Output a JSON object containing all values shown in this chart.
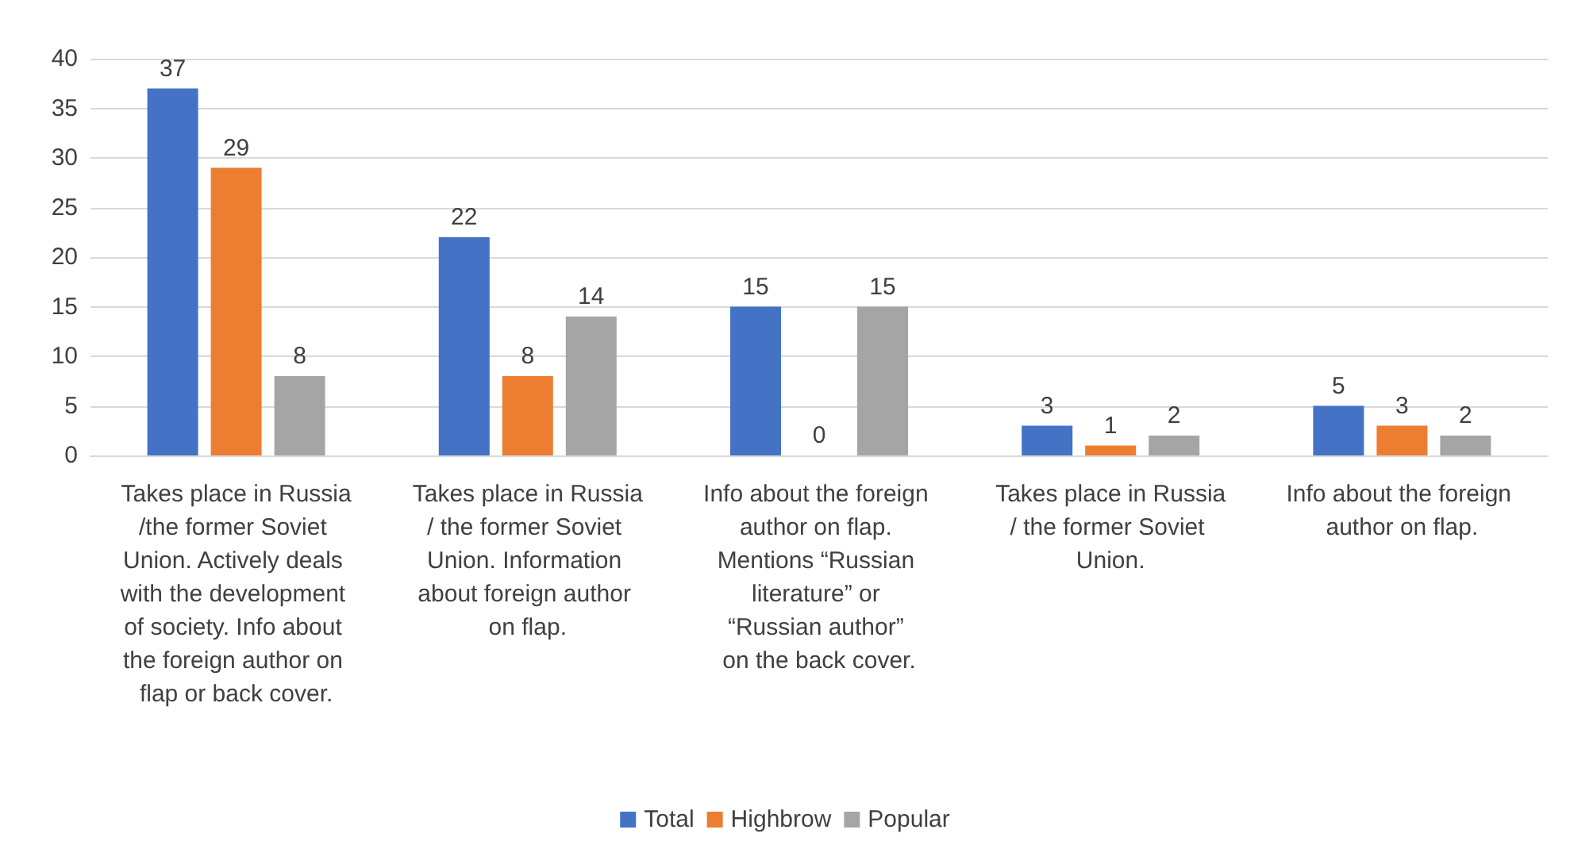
{
  "chart_data": {
    "type": "bar",
    "categories": [
      "Takes place in Russia/the former Soviet Union. Actively deals with the development of society. Info about the foreign author on flap or back cover.",
      "Takes place in Russia/ the former Soviet Union. Information about foreign author on flap.",
      "Info about the foreign author on flap. Mentions “Russian literature” or “Russian author” on the back cover.",
      "Takes place in Russia/ the former Soviet Union.",
      "Info about the foreign author on flap."
    ],
    "series": [
      {
        "name": "Total",
        "color": "#4472c4",
        "values": [
          37,
          22,
          15,
          3,
          5
        ]
      },
      {
        "name": "Highbrow",
        "color": "#ed7d31",
        "values": [
          29,
          8,
          0,
          1,
          3
        ]
      },
      {
        "name": "Popular",
        "color": "#a5a5a5",
        "values": [
          8,
          14,
          15,
          2,
          2
        ]
      }
    ],
    "ylim": [
      0,
      40
    ],
    "yticks": [
      0,
      5,
      10,
      15,
      20,
      25,
      30,
      35,
      40
    ],
    "grid": "y",
    "legend": "bottom",
    "data_labels": true
  }
}
